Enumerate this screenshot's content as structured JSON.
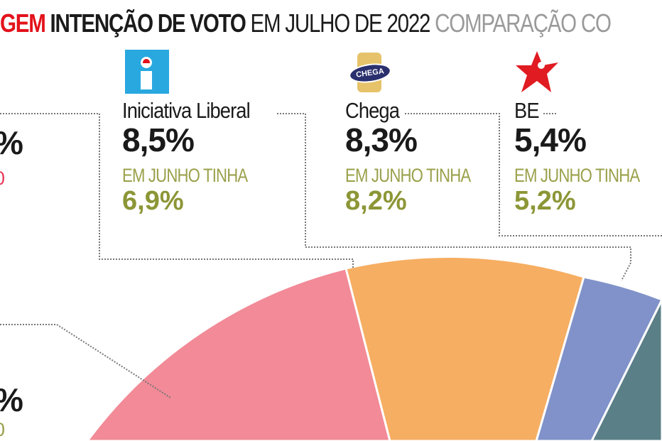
{
  "title": {
    "part_red": "GEM",
    "part_bold": "INTENÇÃO DE VOTO",
    "part_normal": "EM JULHO DE 2022",
    "part_gray": "COMPARAÇÃO CO"
  },
  "left_partial": {
    "value_top": "%",
    "prev_top": "0",
    "value_bottom": "%",
    "prev_bottom": "0"
  },
  "parties": [
    {
      "name": "Iniciativa Liberal",
      "value": "8,5%",
      "prev_label": "EM JUNHO TINHA",
      "prev_value": "6,9%",
      "logo": "il-logo"
    },
    {
      "name": "Chega",
      "value": "8,3%",
      "prev_label": "EM JUNHO TINHA",
      "prev_value": "8,2%",
      "logo": "chega-logo",
      "logo_text": "CHEGA"
    },
    {
      "name": "BE",
      "value": "5,4%",
      "prev_label": "EM JUNHO TINHA",
      "prev_value": "5,2%",
      "logo": "be-star-logo"
    }
  ],
  "chart_data": {
    "type": "pie",
    "title": "INTENÇÃO DE VOTO EM JULHO DE 2022",
    "categories": [
      "Iniciativa Liberal",
      "Chega",
      "BE"
    ],
    "values": [
      8.5,
      8.3,
      5.4
    ],
    "previous_values": [
      6.9,
      8.2,
      5.2
    ],
    "slice_colors": [
      "#f28a97",
      "#f6ae62",
      "#8092c9",
      "#5a7f87"
    ]
  }
}
